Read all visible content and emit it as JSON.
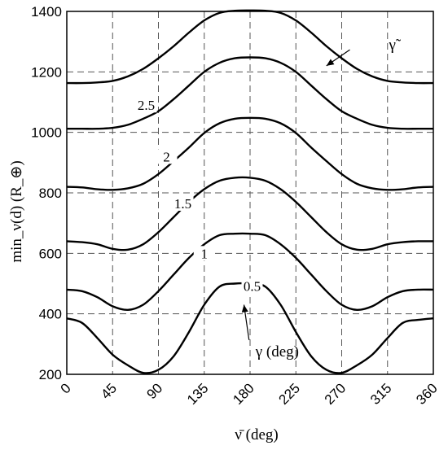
{
  "chart_data": {
    "type": "line",
    "xlabel": "ν̄ (deg)",
    "ylabel": "min_ν(d) (R_⊕)",
    "xlim": [
      0,
      360
    ],
    "ylim": [
      200,
      1400
    ],
    "xticks": [
      "0",
      "45",
      "90",
      "135",
      "180",
      "225",
      "270",
      "315",
      "360"
    ],
    "yticks": [
      "200",
      "400",
      "600",
      "800",
      "1000",
      "1200",
      "1400"
    ],
    "grid": true,
    "x": [
      0,
      15,
      30,
      45,
      60,
      75,
      90,
      105,
      120,
      135,
      150,
      165,
      180,
      195,
      210,
      225,
      240,
      255,
      270,
      285,
      300,
      315,
      330,
      345,
      360
    ],
    "series": [
      {
        "name": "0.5",
        "label_x": 182,
        "label_y": 484,
        "values": [
          385,
          370,
          320,
          265,
          230,
          205,
          215,
          260,
          340,
          430,
          490,
          500,
          500,
          490,
          430,
          340,
          260,
          215,
          205,
          230,
          265,
          320,
          370,
          380,
          385
        ]
      },
      {
        "name": "1",
        "label_x": 135,
        "label_y": 592,
        "values": [
          480,
          475,
          455,
          425,
          413,
          430,
          475,
          530,
          585,
          630,
          660,
          665,
          665,
          660,
          630,
          585,
          530,
          475,
          430,
          413,
          425,
          455,
          475,
          480,
          480
        ]
      },
      {
        "name": "1.5",
        "label_x": 114,
        "label_y": 757,
        "values": [
          640,
          637,
          630,
          615,
          612,
          630,
          670,
          720,
          770,
          812,
          840,
          850,
          850,
          840,
          812,
          770,
          720,
          670,
          630,
          612,
          615,
          630,
          637,
          640,
          640
        ]
      },
      {
        "name": "2",
        "label_x": 98,
        "label_y": 912,
        "values": [
          820,
          818,
          812,
          810,
          815,
          830,
          862,
          905,
          950,
          998,
          1030,
          1045,
          1048,
          1045,
          1030,
          998,
          950,
          905,
          862,
          830,
          815,
          810,
          812,
          818,
          820
        ]
      },
      {
        "name": "2.5",
        "label_x": 78,
        "label_y": 1082,
        "values": [
          1012,
          1012,
          1012,
          1015,
          1025,
          1045,
          1070,
          1110,
          1155,
          1200,
          1230,
          1245,
          1248,
          1245,
          1230,
          1200,
          1155,
          1110,
          1070,
          1045,
          1025,
          1015,
          1012,
          1012,
          1012
        ]
      },
      {
        "name": "",
        "values": [
          1163,
          1163,
          1165,
          1170,
          1185,
          1210,
          1245,
          1285,
          1330,
          1370,
          1395,
          1402,
          1403,
          1402,
          1395,
          1370,
          1330,
          1285,
          1245,
          1210,
          1185,
          1170,
          1165,
          1163,
          1163
        ]
      }
    ],
    "annotations": [
      {
        "text": "γ̃",
        "tip_x": 255,
        "tip_y": 1220,
        "text_x": 310,
        "text_y": 1300
      },
      {
        "text": "γ (deg)",
        "tip_x": 174,
        "tip_y": 430,
        "text_x": 187,
        "text_y": 265
      }
    ]
  }
}
